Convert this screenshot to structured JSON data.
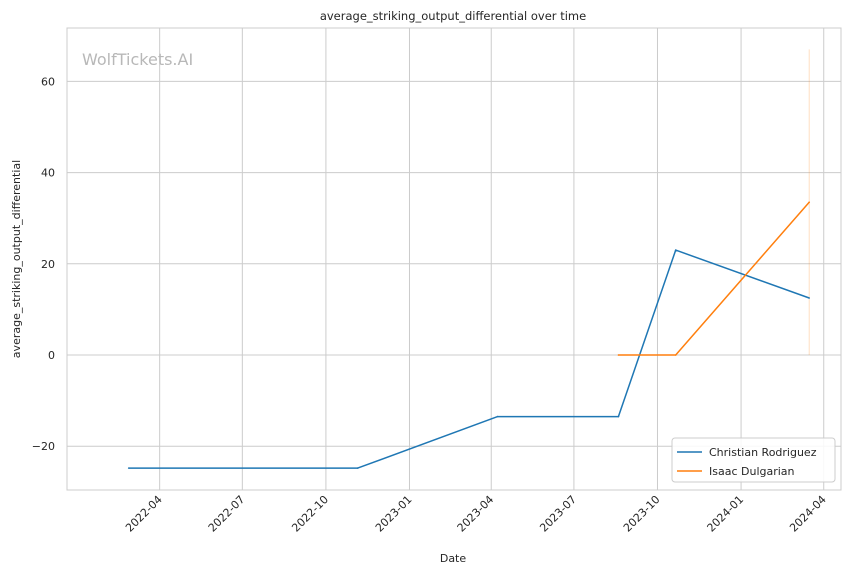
{
  "chart_data": {
    "type": "line",
    "title": "average_striking_output_differential over time",
    "xlabel": "Date",
    "ylabel": "average_striking_output_differential",
    "watermark": "WolfTickets.AI",
    "x_axis_type": "date",
    "xlim": [
      "2021-12-20",
      "2024-04-20"
    ],
    "ylim": [
      -29.6,
      71.7
    ],
    "x_ticks": [
      "2022-04-01",
      "2022-07-01",
      "2022-10-01",
      "2023-01-01",
      "2023-04-01",
      "2023-07-01",
      "2023-10-01",
      "2024-01-01",
      "2024-04-01"
    ],
    "x_tick_labels": [
      "2022-04",
      "2022-07",
      "2022-10",
      "2023-01",
      "2023-04",
      "2023-07",
      "2023-10",
      "2024-01",
      "2024-04"
    ],
    "y_ticks": [
      -20,
      0,
      20,
      40,
      60
    ],
    "y_tick_labels": [
      "−20",
      "0",
      "20",
      "40",
      "60"
    ],
    "grid": true,
    "legend_position": "bottom-right",
    "series": [
      {
        "name": "Christian Rodriguez",
        "color": "#1f77b4",
        "points": [
          {
            "x": "2022-02-26",
            "y": -24.8
          },
          {
            "x": "2022-11-05",
            "y": -24.8
          },
          {
            "x": "2023-04-08",
            "y": -13.5
          },
          {
            "x": "2023-08-19",
            "y": -13.5
          },
          {
            "x": "2023-10-21",
            "y": 23.0
          },
          {
            "x": "2024-03-16",
            "y": 12.5
          }
        ]
      },
      {
        "name": "Isaac Dulgarian",
        "color": "#ff7f0e",
        "points": [
          {
            "x": "2023-08-19",
            "y": 0.0
          },
          {
            "x": "2023-10-21",
            "y": 0.0
          },
          {
            "x": "2024-03-16",
            "y": 33.5
          }
        ]
      }
    ],
    "annotations": [
      {
        "type": "vertical-line",
        "x": "2024-03-16",
        "y_from": 0,
        "y_to": 67,
        "color": "#ff7f0e"
      }
    ]
  }
}
